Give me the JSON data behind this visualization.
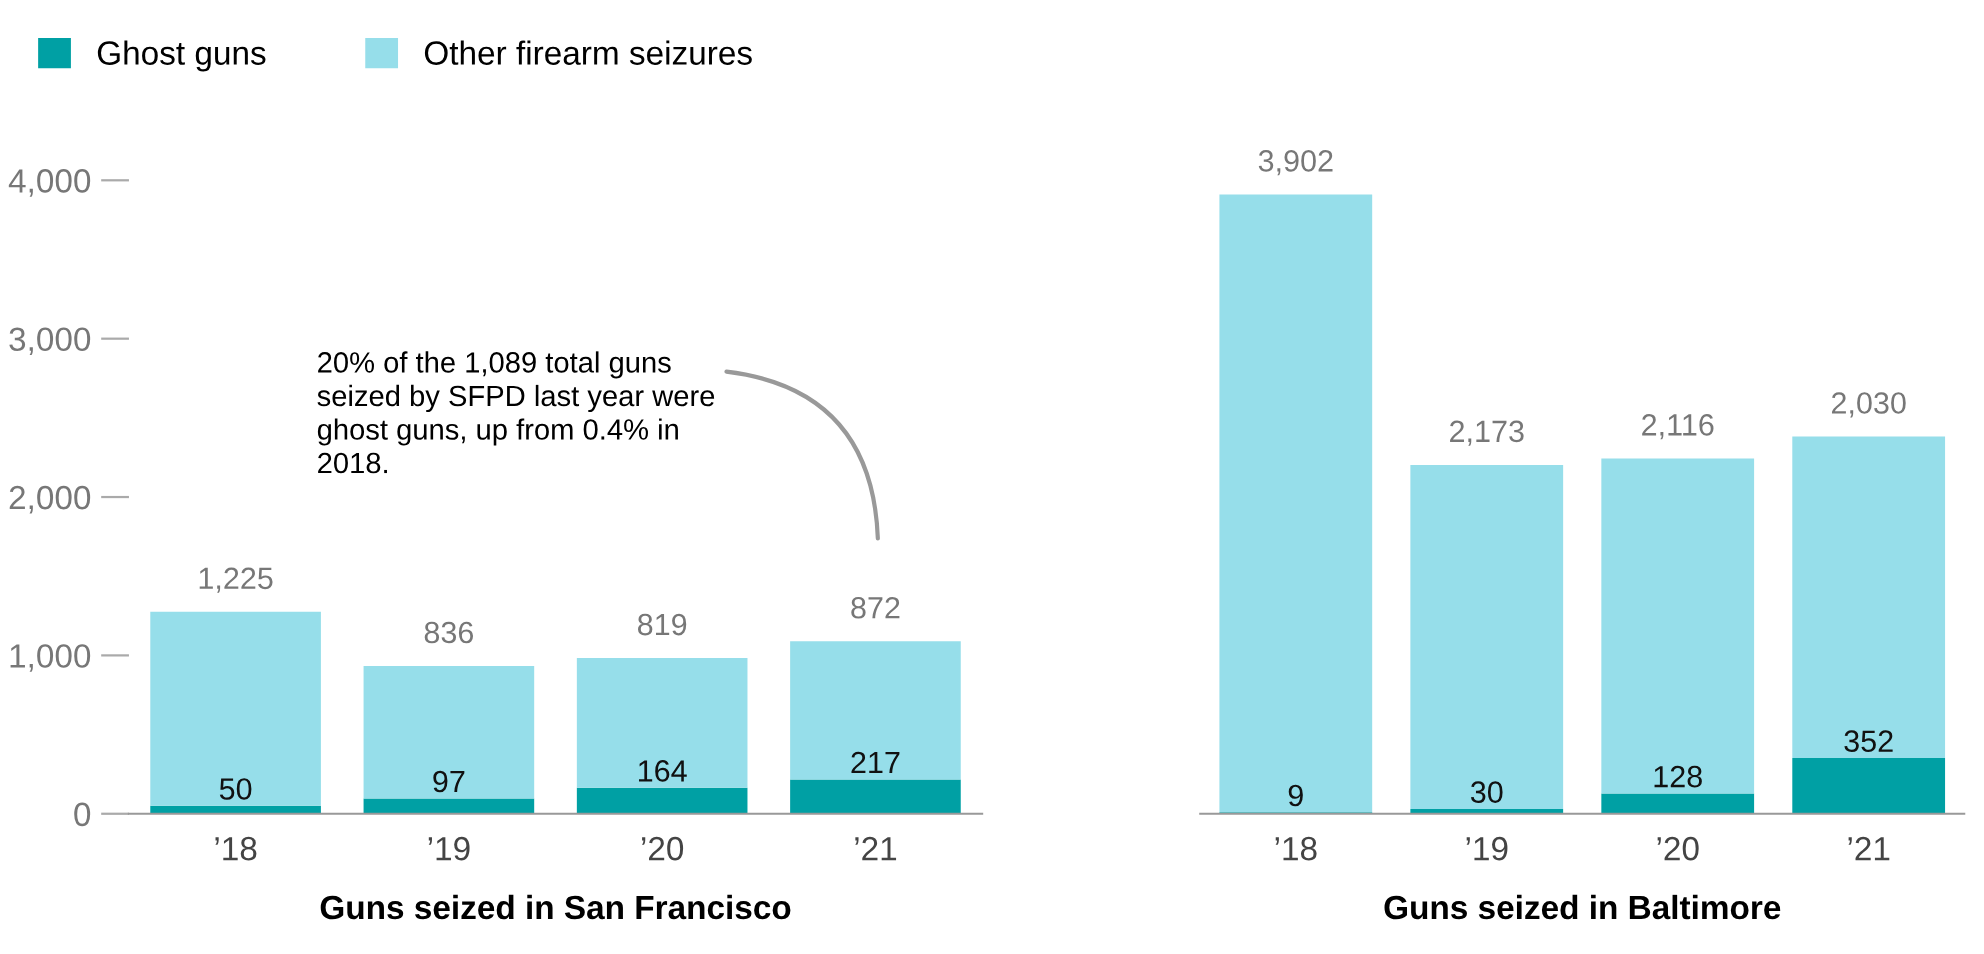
{
  "chart_data": [
    {
      "type": "bar",
      "stacked": true,
      "xlabel": "Guns seized in San Francisco",
      "categories": [
        "’18",
        "’19",
        "’20",
        "’21"
      ],
      "series": [
        {
          "name": "Ghost guns",
          "color": "#00a0a4",
          "values": [
            50,
            97,
            164,
            217
          ],
          "value_labels": [
            "50",
            "97",
            "164",
            "217"
          ]
        },
        {
          "name": "Other firearm seizures",
          "color": "#96deea",
          "values": [
            1225,
            836,
            819,
            872
          ],
          "value_labels": [
            "1,225",
            "836",
            "819",
            "872"
          ]
        }
      ],
      "ylim": [
        0,
        4000
      ],
      "yticks": [
        0,
        {
          "value": 1000,
          "label": "1,000"
        },
        {
          "value": 2000,
          "label": "2,000"
        },
        {
          "value": 3000,
          "label": "3,000"
        },
        {
          "value": 4000,
          "label": "4,000"
        }
      ],
      "legend": "top left",
      "annotations": [
        "20% of the 1,089 total guns\nseized by SFPD last year were\nghost guns, up from 0.4% in\n2018."
      ]
    },
    {
      "type": "bar",
      "stacked": true,
      "xlabel": "Guns seized in Baltimore",
      "categories": [
        "’18",
        "’19",
        "’20",
        "’21"
      ],
      "series": [
        {
          "color": "#00a0a4",
          "values": [
            9,
            30,
            128,
            352
          ],
          "value_labels": [
            "9",
            "30",
            "128",
            "352"
          ]
        },
        {
          "color": "#96deea",
          "values": [
            3902,
            2173,
            2116,
            2030
          ],
          "value_labels": [
            "3,902",
            "2,173",
            "2,116",
            "2,030"
          ]
        }
      ],
      "ylim": [
        0,
        4000
      ],
      "tick_labels": "x"
    }
  ]
}
